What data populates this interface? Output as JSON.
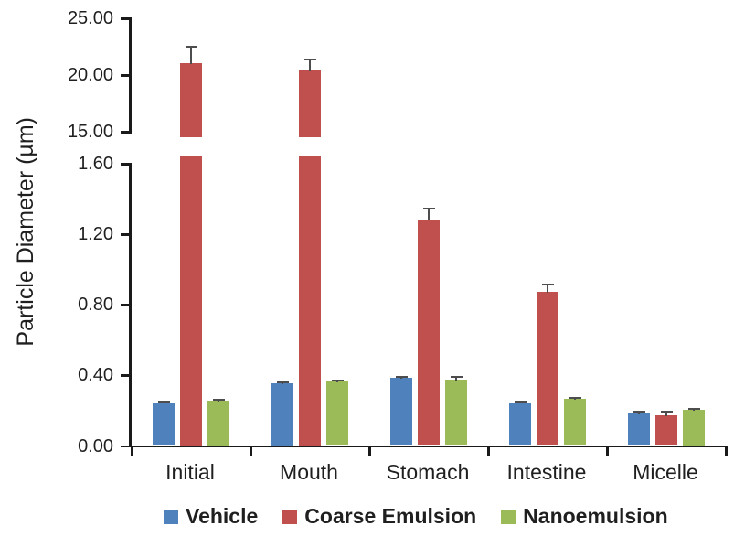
{
  "y_axis": {
    "title": "Particle Diameter (µm)",
    "upper_tick_labels": [
      "25.00",
      "20.00",
      "15.00"
    ],
    "lower_tick_labels": [
      "1.60",
      "1.20",
      "0.80",
      "0.40",
      "0.00"
    ]
  },
  "x_axis": {
    "categories": [
      "Initial",
      "Mouth",
      "Stomach",
      "Intestine",
      "Micelle"
    ]
  },
  "legend": {
    "items": [
      {
        "label": "Vehicle",
        "color": "#4F81BD"
      },
      {
        "label": "Coarse Emulsion",
        "color": "#C0504D"
      },
      {
        "label": "Nanoemulsion",
        "color": "#9BBB59"
      }
    ]
  },
  "chart_data": {
    "type": "bar",
    "title": "",
    "xlabel": "",
    "ylabel": "Particle Diameter (µm)",
    "categories": [
      "Initial",
      "Mouth",
      "Stomach",
      "Intestine",
      "Micelle"
    ],
    "series": [
      {
        "name": "Vehicle",
        "color": "#4F81BD",
        "values": [
          0.24,
          0.35,
          0.38,
          0.24,
          0.18
        ],
        "errors": [
          0.006,
          0.006,
          0.008,
          0.008,
          0.01
        ]
      },
      {
        "name": "Coarse Emulsion",
        "color": "#C0504D",
        "values": [
          21.0,
          20.3,
          1.28,
          0.87,
          0.17
        ],
        "errors": [
          1.4,
          1.0,
          0.06,
          0.04,
          0.02
        ]
      },
      {
        "name": "Nanoemulsion",
        "color": "#9BBB59",
        "values": [
          0.25,
          0.36,
          0.37,
          0.26,
          0.2
        ],
        "errors": [
          0.006,
          0.008,
          0.015,
          0.008,
          0.007
        ]
      }
    ],
    "y_axis_break": {
      "lower_range": [
        0,
        1.6
      ],
      "lower_ticks": [
        0,
        0.4,
        0.8,
        1.2,
        1.6
      ],
      "upper_range": [
        15,
        25
      ],
      "upper_ticks": [
        15,
        20,
        25
      ]
    },
    "error_bars": true,
    "grid": false,
    "legend_position": "bottom"
  }
}
